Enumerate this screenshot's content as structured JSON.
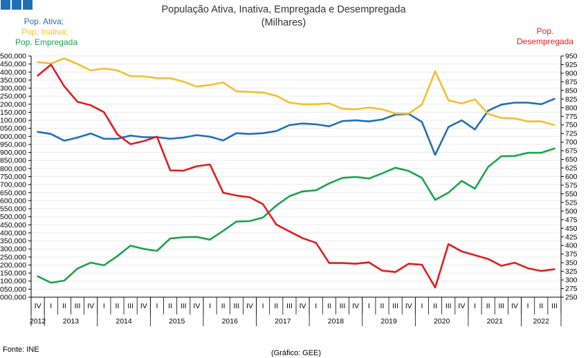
{
  "chart_data": {
    "type": "line",
    "title": "População Ativa, Inativa, Empregada e Desempregada",
    "subtitle": "(Milhares)",
    "source": "Fonte: INE",
    "credit": "(Gráfico: GEE)",
    "legend_left": [
      {
        "label": "Pop. Ativa;",
        "color": "#1f6fb5"
      },
      {
        "label": "Pop. Inativa;",
        "color": "#f2bf2e"
      },
      {
        "label": "Pop. Empregada",
        "color": "#1aa24a"
      }
    ],
    "legend_right": {
      "lines": [
        "Pop.",
        "Desempregada"
      ],
      "color": "#e31a1c"
    },
    "y_left": {
      "min": 4000,
      "max": 5500,
      "step": 50
    },
    "y_right": {
      "min": 250,
      "max": 950,
      "step": 25
    },
    "quarters": [
      "IV",
      "I",
      "II",
      "III",
      "IV",
      "I",
      "II",
      "III",
      "IV",
      "I",
      "II",
      "III",
      "IV",
      "I",
      "II",
      "III",
      "IV",
      "I",
      "II",
      "III",
      "IV",
      "I",
      "II",
      "III",
      "IV",
      "I",
      "II",
      "III",
      "IV",
      "I",
      "II",
      "III",
      "IV",
      "I",
      "II",
      "III",
      "IV",
      "I",
      "II",
      "III"
    ],
    "years": [
      {
        "label": "2012",
        "start": 0,
        "end": 0
      },
      {
        "label": "2013",
        "start": 1,
        "end": 4
      },
      {
        "label": "2014",
        "start": 5,
        "end": 8
      },
      {
        "label": "2015",
        "start": 9,
        "end": 12
      },
      {
        "label": "2016",
        "start": 13,
        "end": 16
      },
      {
        "label": "2017",
        "start": 17,
        "end": 20
      },
      {
        "label": "2018",
        "start": 21,
        "end": 24
      },
      {
        "label": "2019",
        "start": 25,
        "end": 28
      },
      {
        "label": "2020",
        "start": 29,
        "end": 32
      },
      {
        "label": "2021",
        "start": 33,
        "end": 36
      },
      {
        "label": "2022",
        "start": 37,
        "end": 39
      }
    ],
    "series": [
      {
        "name": "Pop. Ativa",
        "axis": "left",
        "color": "#1f6fb5",
        "values": [
          5028,
          5015,
          4973,
          4993,
          5018,
          4985,
          4985,
          5005,
          4995,
          4995,
          4985,
          4993,
          5008,
          4998,
          4975,
          5020,
          5015,
          5020,
          5033,
          5070,
          5080,
          5075,
          5063,
          5095,
          5100,
          5093,
          5105,
          5135,
          5140,
          5090,
          4885,
          5058,
          5100,
          5043,
          5160,
          5198,
          5210,
          5210,
          5200,
          5233
        ]
      },
      {
        "name": "Pop. Inativa",
        "axis": "left",
        "color": "#f2bf2e",
        "values": [
          5462,
          5453,
          5485,
          5450,
          5410,
          5422,
          5410,
          5375,
          5373,
          5362,
          5362,
          5340,
          5310,
          5320,
          5335,
          5280,
          5277,
          5273,
          5253,
          5210,
          5200,
          5200,
          5205,
          5172,
          5168,
          5180,
          5168,
          5142,
          5142,
          5198,
          5405,
          5225,
          5205,
          5230,
          5140,
          5115,
          5112,
          5093,
          5093,
          5070
        ]
      },
      {
        "name": "Pop. Empregada",
        "axis": "left",
        "color": "#1aa24a",
        "values": [
          4130,
          4090,
          4103,
          4178,
          4215,
          4198,
          4255,
          4320,
          4300,
          4288,
          4365,
          4373,
          4375,
          4358,
          4413,
          4470,
          4473,
          4495,
          4570,
          4628,
          4658,
          4665,
          4708,
          4742,
          4748,
          4738,
          4770,
          4805,
          4785,
          4742,
          4605,
          4650,
          4723,
          4675,
          4810,
          4877,
          4878,
          4898,
          4898,
          4925
        ]
      },
      {
        "name": "Pop. Desempregada",
        "axis": "right",
        "color": "#e31a1c",
        "values": [
          893,
          925,
          862,
          817,
          807,
          787,
          723,
          694,
          703,
          716,
          618,
          617,
          630,
          635,
          553,
          545,
          540,
          520,
          461,
          441,
          421,
          408,
          349,
          349,
          347,
          351,
          327,
          323,
          347,
          344,
          278,
          404,
          383,
          372,
          361,
          341,
          350,
          334,
          326,
          331
        ]
      }
    ]
  }
}
